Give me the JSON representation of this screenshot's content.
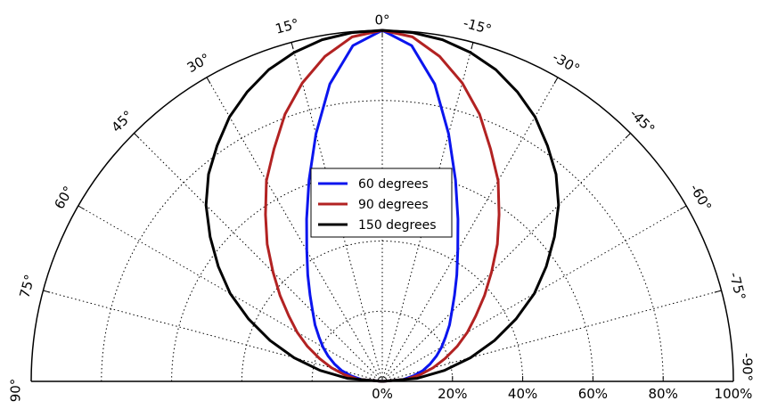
{
  "chart_data": {
    "type": "line",
    "subtype": "polar-half",
    "title": "",
    "angle_unit": "degrees",
    "zero_direction": "up",
    "angle_ticks": [
      {
        "value": 0,
        "label": "0°"
      },
      {
        "value": 15,
        "label": "15°"
      },
      {
        "value": 30,
        "label": "30°"
      },
      {
        "value": 45,
        "label": "45°"
      },
      {
        "value": 60,
        "label": "60°"
      },
      {
        "value": 75,
        "label": "75°"
      },
      {
        "value": 90,
        "label": "90°"
      },
      {
        "value": -15,
        "label": "-15°"
      },
      {
        "value": -30,
        "label": "-30°"
      },
      {
        "value": -45,
        "label": "-45°"
      },
      {
        "value": -60,
        "label": "-60°"
      },
      {
        "value": -75,
        "label": "-75°"
      },
      {
        "value": -90,
        "label": "-90°"
      }
    ],
    "radial_ticks": [
      {
        "value": 0,
        "label": "0%"
      },
      {
        "value": 20,
        "label": "20%"
      },
      {
        "value": 40,
        "label": "40%"
      },
      {
        "value": 60,
        "label": "60%"
      },
      {
        "value": 80,
        "label": "80%"
      },
      {
        "value": 100,
        "label": "100%"
      }
    ],
    "rlim": [
      0,
      100
    ],
    "grid": true,
    "legend_position": "center",
    "series": [
      {
        "name": "60 degrees",
        "color": "#0b15ee",
        "points": [
          {
            "angle": 90,
            "r": 0
          },
          {
            "angle": 85,
            "r": 6
          },
          {
            "angle": 80,
            "r": 9
          },
          {
            "angle": 75,
            "r": 12
          },
          {
            "angle": 70,
            "r": 14.5
          },
          {
            "angle": 65,
            "r": 17
          },
          {
            "angle": 60,
            "r": 19.5
          },
          {
            "angle": 55,
            "r": 22
          },
          {
            "angle": 50,
            "r": 25
          },
          {
            "angle": 45,
            "r": 28
          },
          {
            "angle": 40,
            "r": 32
          },
          {
            "angle": 35,
            "r": 37
          },
          {
            "angle": 30,
            "r": 43
          },
          {
            "angle": 25,
            "r": 51
          },
          {
            "angle": 20,
            "r": 61
          },
          {
            "angle": 15,
            "r": 73
          },
          {
            "angle": 10,
            "r": 86
          },
          {
            "angle": 5,
            "r": 96
          },
          {
            "angle": 0,
            "r": 100
          },
          {
            "angle": -5,
            "r": 96
          },
          {
            "angle": -10,
            "r": 86
          },
          {
            "angle": -15,
            "r": 73
          },
          {
            "angle": -20,
            "r": 61
          },
          {
            "angle": -25,
            "r": 51
          },
          {
            "angle": -30,
            "r": 43
          },
          {
            "angle": -35,
            "r": 37
          },
          {
            "angle": -40,
            "r": 32
          },
          {
            "angle": -45,
            "r": 28
          },
          {
            "angle": -50,
            "r": 25
          },
          {
            "angle": -55,
            "r": 22
          },
          {
            "angle": -60,
            "r": 19.5
          },
          {
            "angle": -65,
            "r": 17
          },
          {
            "angle": -70,
            "r": 14.5
          },
          {
            "angle": -75,
            "r": 12
          },
          {
            "angle": -80,
            "r": 9
          },
          {
            "angle": -85,
            "r": 6
          },
          {
            "angle": -90,
            "r": 0
          }
        ]
      },
      {
        "name": "90 degrees",
        "color": "#b22222",
        "points": [
          {
            "angle": 90,
            "r": 0
          },
          {
            "angle": 85,
            "r": 7
          },
          {
            "angle": 80,
            "r": 11
          },
          {
            "angle": 75,
            "r": 15
          },
          {
            "angle": 70,
            "r": 19
          },
          {
            "angle": 65,
            "r": 23.5
          },
          {
            "angle": 60,
            "r": 28
          },
          {
            "angle": 55,
            "r": 32.5
          },
          {
            "angle": 50,
            "r": 38
          },
          {
            "angle": 45,
            "r": 44
          },
          {
            "angle": 40,
            "r": 51
          },
          {
            "angle": 35,
            "r": 58
          },
          {
            "angle": 30,
            "r": 66
          },
          {
            "angle": 25,
            "r": 73
          },
          {
            "angle": 20,
            "r": 81
          },
          {
            "angle": 15,
            "r": 88
          },
          {
            "angle": 10,
            "r": 94
          },
          {
            "angle": 5,
            "r": 98.5
          },
          {
            "angle": 0,
            "r": 100
          },
          {
            "angle": -5,
            "r": 98.5
          },
          {
            "angle": -10,
            "r": 94
          },
          {
            "angle": -15,
            "r": 88
          },
          {
            "angle": -20,
            "r": 81
          },
          {
            "angle": -25,
            "r": 73
          },
          {
            "angle": -30,
            "r": 66
          },
          {
            "angle": -35,
            "r": 58
          },
          {
            "angle": -40,
            "r": 51
          },
          {
            "angle": -45,
            "r": 44
          },
          {
            "angle": -50,
            "r": 38
          },
          {
            "angle": -55,
            "r": 32.5
          },
          {
            "angle": -60,
            "r": 28
          },
          {
            "angle": -65,
            "r": 23.5
          },
          {
            "angle": -70,
            "r": 19
          },
          {
            "angle": -75,
            "r": 15
          },
          {
            "angle": -80,
            "r": 11
          },
          {
            "angle": -85,
            "r": 7
          },
          {
            "angle": -90,
            "r": 0
          }
        ]
      },
      {
        "name": "150 degrees",
        "color": "#000000",
        "points": [
          {
            "angle": 90,
            "r": 0
          },
          {
            "angle": 85,
            "r": 10
          },
          {
            "angle": 80,
            "r": 18
          },
          {
            "angle": 75,
            "r": 26
          },
          {
            "angle": 70,
            "r": 34
          },
          {
            "angle": 65,
            "r": 42
          },
          {
            "angle": 60,
            "r": 50
          },
          {
            "angle": 55,
            "r": 57
          },
          {
            "angle": 50,
            "r": 64
          },
          {
            "angle": 45,
            "r": 71
          },
          {
            "angle": 40,
            "r": 77
          },
          {
            "angle": 35,
            "r": 82
          },
          {
            "angle": 30,
            "r": 87
          },
          {
            "angle": 25,
            "r": 91
          },
          {
            "angle": 20,
            "r": 94.5
          },
          {
            "angle": 15,
            "r": 97
          },
          {
            "angle": 10,
            "r": 98.8
          },
          {
            "angle": 5,
            "r": 99.7
          },
          {
            "angle": 0,
            "r": 100
          },
          {
            "angle": -5,
            "r": 99.7
          },
          {
            "angle": -10,
            "r": 98.8
          },
          {
            "angle": -15,
            "r": 97
          },
          {
            "angle": -20,
            "r": 94.5
          },
          {
            "angle": -25,
            "r": 91
          },
          {
            "angle": -30,
            "r": 87
          },
          {
            "angle": -35,
            "r": 82
          },
          {
            "angle": -40,
            "r": 77
          },
          {
            "angle": -45,
            "r": 71
          },
          {
            "angle": -50,
            "r": 64
          },
          {
            "angle": -55,
            "r": 57
          },
          {
            "angle": -60,
            "r": 50
          },
          {
            "angle": -65,
            "r": 42
          },
          {
            "angle": -70,
            "r": 34
          },
          {
            "angle": -75,
            "r": 26
          },
          {
            "angle": -80,
            "r": 18
          },
          {
            "angle": -85,
            "r": 10
          },
          {
            "angle": -90,
            "r": 0
          }
        ]
      }
    ]
  }
}
